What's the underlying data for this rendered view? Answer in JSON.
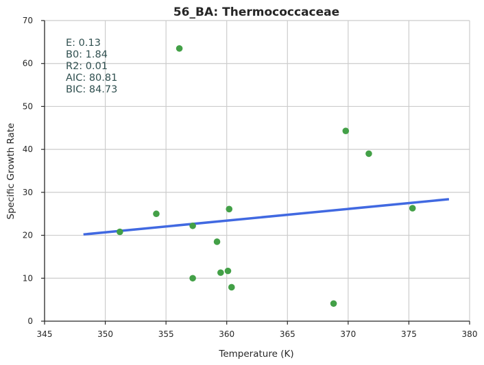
{
  "chart_data": {
    "type": "scatter",
    "title": "56_BA: Thermococcaceae",
    "xlabel": "Temperature (K)",
    "ylabel": "Specific Growth Rate",
    "xlim": [
      345,
      380
    ],
    "ylim": [
      0,
      70
    ],
    "xticks": [
      "345",
      "350",
      "355",
      "360",
      "365",
      "370",
      "375",
      "380"
    ],
    "yticks": [
      "0",
      "10",
      "20",
      "30",
      "40",
      "50",
      "60",
      "70"
    ],
    "grid": true,
    "points": [
      {
        "x": 351.2,
        "y": 20.8
      },
      {
        "x": 354.2,
        "y": 25.0
      },
      {
        "x": 356.1,
        "y": 63.5
      },
      {
        "x": 357.2,
        "y": 22.2
      },
      {
        "x": 357.2,
        "y": 10.0
      },
      {
        "x": 359.2,
        "y": 18.5
      },
      {
        "x": 359.5,
        "y": 11.3
      },
      {
        "x": 360.1,
        "y": 11.7
      },
      {
        "x": 360.2,
        "y": 26.1
      },
      {
        "x": 360.4,
        "y": 7.9
      },
      {
        "x": 368.8,
        "y": 4.1
      },
      {
        "x": 369.8,
        "y": 44.3
      },
      {
        "x": 371.7,
        "y": 39.0
      },
      {
        "x": 375.3,
        "y": 26.3
      }
    ],
    "fit_line": {
      "x": [
        348.2,
        378.3
      ],
      "y": [
        20.2,
        28.4
      ]
    },
    "point_color": "#43a047",
    "line_color": "#4169e1",
    "stats": [
      "E:  0.13",
      "B0:  1.84",
      "R2:  0.01",
      "AIC: 80.81",
      "BIC: 84.73"
    ]
  }
}
